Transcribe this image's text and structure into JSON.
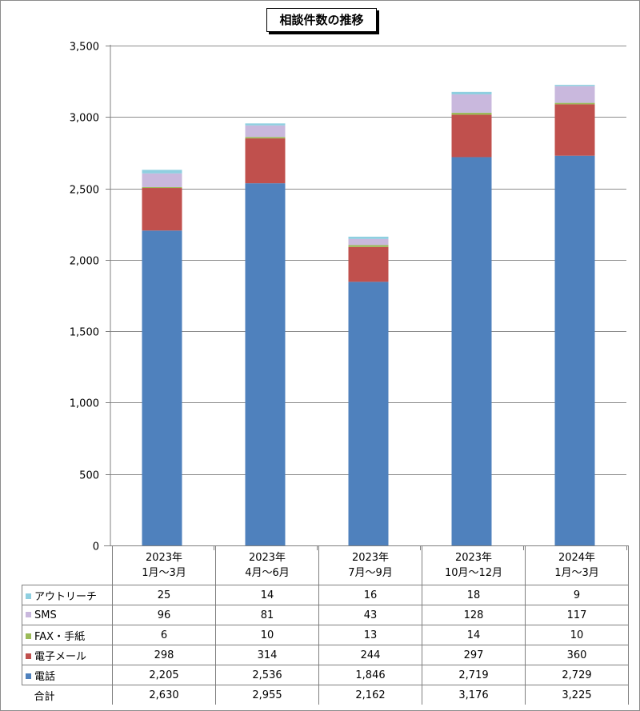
{
  "chart_data": {
    "type": "bar",
    "stacked": true,
    "title": "相談件数の推移",
    "ylim": [
      0,
      3500
    ],
    "ytick_labels": [
      "0",
      "500",
      "1,000",
      "1,500",
      "2,000",
      "2,500",
      "3,000",
      "3,500"
    ],
    "categories": [
      {
        "line1": "2023年",
        "line2": "1月～3月"
      },
      {
        "line1": "2023年",
        "line2": "4月～6月"
      },
      {
        "line1": "2023年",
        "line2": "7月～9月"
      },
      {
        "line1": "2023年",
        "line2": "10月～12月"
      },
      {
        "line1": "2024年",
        "line2": "1月～3月"
      }
    ],
    "series": [
      {
        "name": "電話",
        "color": "#4f81bd",
        "values": [
          2205,
          2536,
          1846,
          2719,
          2729
        ],
        "labels": [
          "2,205",
          "2,536",
          "1,846",
          "2,719",
          "2,729"
        ]
      },
      {
        "name": "電子メール",
        "color": "#c0504d",
        "values": [
          298,
          314,
          244,
          297,
          360
        ],
        "labels": [
          "298",
          "314",
          "244",
          "297",
          "360"
        ]
      },
      {
        "name": "FAX・手紙",
        "color": "#9bbb59",
        "values": [
          6,
          10,
          13,
          14,
          10
        ],
        "labels": [
          "6",
          "10",
          "13",
          "14",
          "10"
        ]
      },
      {
        "name": "SMS",
        "color": "#c9b8dd",
        "values": [
          96,
          81,
          43,
          128,
          117
        ],
        "labels": [
          "96",
          "81",
          "43",
          "128",
          "117"
        ]
      },
      {
        "name": "アウトリーチ",
        "color": "#8fcfe0",
        "values": [
          25,
          14,
          16,
          18,
          9
        ],
        "labels": [
          "25",
          "14",
          "16",
          "18",
          "9"
        ]
      }
    ],
    "total": {
      "name": "合計",
      "values": [
        2630,
        2955,
        2162,
        3176,
        3225
      ],
      "labels": [
        "2,630",
        "2,955",
        "2,162",
        "3,176",
        "3,225"
      ]
    }
  }
}
